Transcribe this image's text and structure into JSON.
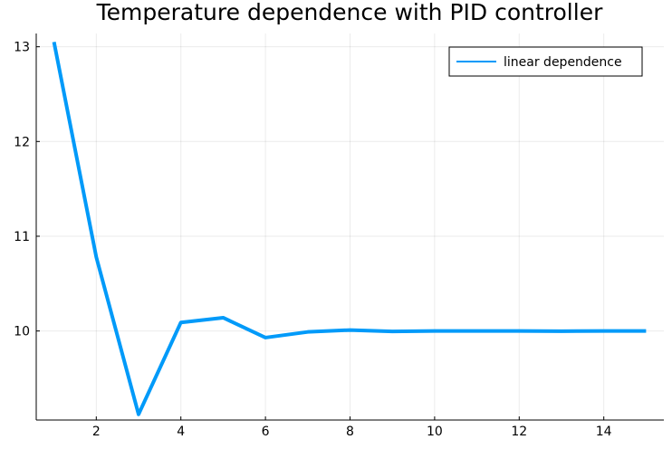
{
  "chart_data": {
    "type": "line",
    "title": "Temperature dependence with PID controller",
    "xlabel": "",
    "ylabel": "",
    "xlim": [
      0.58,
      15.42
    ],
    "ylim": [
      9.06,
      13.14
    ],
    "xticks": [
      2,
      4,
      6,
      8,
      10,
      12,
      14
    ],
    "yticks": [
      10,
      11,
      12,
      13
    ],
    "grid": true,
    "legend_position": "top-right",
    "series": [
      {
        "name": "linear dependence",
        "color": "#009af9",
        "x": [
          1,
          2,
          3,
          4,
          5,
          6,
          7,
          8,
          9,
          10,
          11,
          12,
          13,
          14,
          15
        ],
        "y": [
          13.05,
          10.78,
          9.12,
          10.09,
          10.14,
          9.93,
          9.99,
          10.01,
          9.995,
          10.0,
          10.0,
          10.0,
          9.998,
          10.0,
          10.0
        ]
      }
    ]
  }
}
